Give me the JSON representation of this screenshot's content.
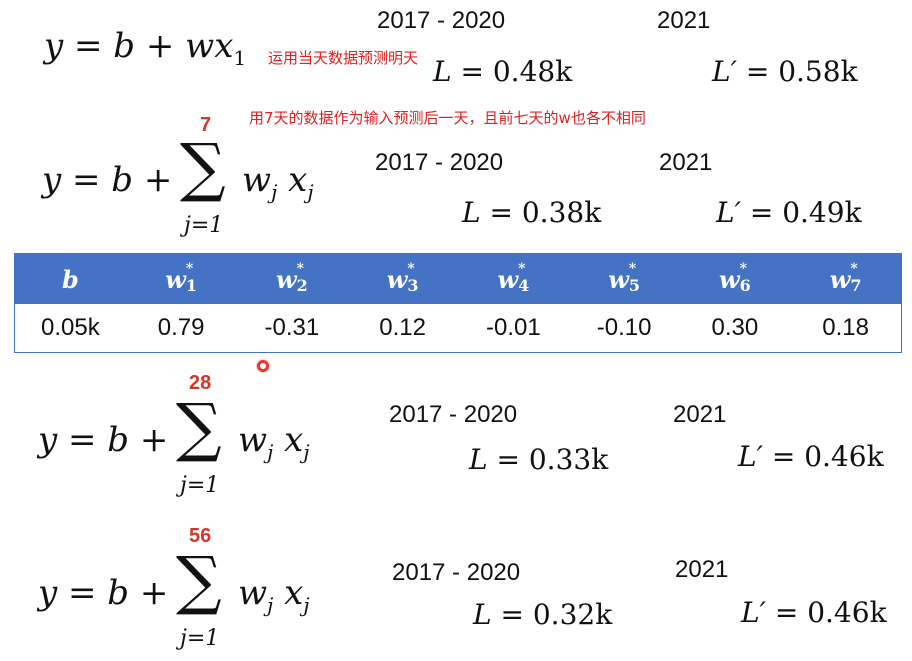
{
  "eq1": {
    "lhs": "y = b + w",
    "var": "x",
    "sub": "1"
  },
  "note1": "运用当天数据预测明天",
  "note2": "用7天的数据作为输入预测后一天，且前七天的w也各不相同",
  "sum_eq": {
    "lhs": "y = b + ",
    "sum": "∑",
    "term": "w",
    "j": "j",
    "x": "x",
    "lower": "j=1"
  },
  "sections": [
    {
      "upper": "",
      "train_years": "2017 - 2020",
      "train_L": "L = ",
      "train_val": "0.48k",
      "test_year": "2021",
      "test_L": "L′ = ",
      "test_val": "0.58k"
    },
    {
      "upper": "7",
      "train_years": "2017 - 2020",
      "train_L": "L = ",
      "train_val": "0.38k",
      "test_year": "2021",
      "test_L": "L′ = ",
      "test_val": "0.49k"
    },
    {
      "upper": "28",
      "train_years": "2017 - 2020",
      "train_L": "L = ",
      "train_val": "0.33k",
      "test_year": "2021",
      "test_L": "L′ = ",
      "test_val": "0.46k"
    },
    {
      "upper": "56",
      "train_years": "2017 - 2020",
      "train_L": "L = ",
      "train_val": "0.32k",
      "test_year": "2021",
      "test_L": "L′ = ",
      "test_val": "0.46k"
    }
  ],
  "table": {
    "headers": [
      {
        "base": "b",
        "star": "",
        "sub": ""
      },
      {
        "base": "w",
        "star": "*",
        "sub": "1"
      },
      {
        "base": "w",
        "star": "*",
        "sub": "2"
      },
      {
        "base": "w",
        "star": "*",
        "sub": "3"
      },
      {
        "base": "w",
        "star": "*",
        "sub": "4"
      },
      {
        "base": "w",
        "star": "*",
        "sub": "5"
      },
      {
        "base": "w",
        "star": "*",
        "sub": "6"
      },
      {
        "base": "w",
        "star": "*",
        "sub": "7"
      }
    ],
    "values": [
      "0.05k",
      "0.79",
      "-0.31",
      "0.12",
      "-0.01",
      "-0.10",
      "0.30",
      "0.18"
    ],
    "header_bg": "#4472c4"
  }
}
